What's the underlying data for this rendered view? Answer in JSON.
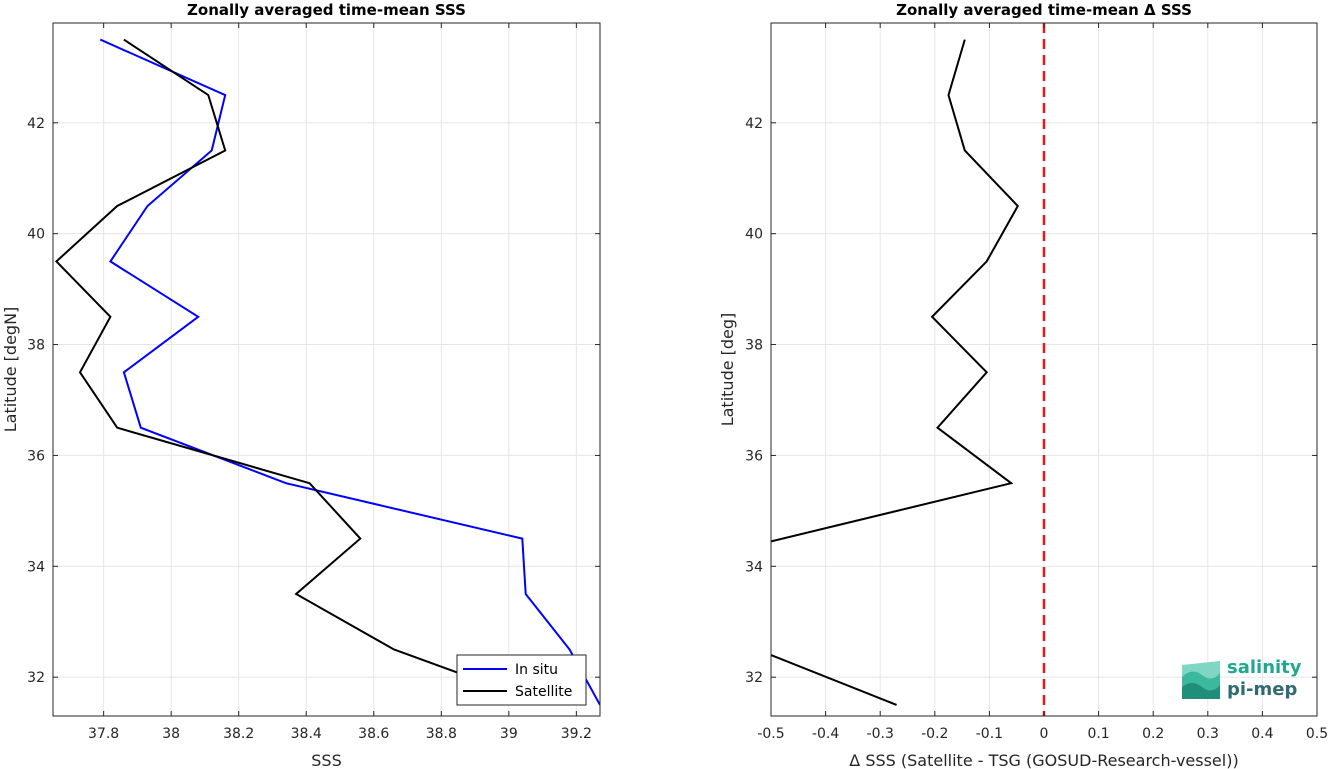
{
  "chart_data": [
    {
      "type": "line",
      "title": "Zonally averaged time-mean SSS",
      "xlabel": "SSS",
      "ylabel": "Latitude [degN]",
      "xlim": [
        37.65,
        39.27
      ],
      "ylim": [
        31.3,
        43.8
      ],
      "xticks": [
        37.8,
        38,
        38.2,
        38.4,
        38.6,
        38.8,
        39,
        39.2
      ],
      "xtick_labels": [
        "37.8",
        "38",
        "38.2",
        "38.4",
        "38.6",
        "38.8",
        "39",
        "39.2"
      ],
      "yticks": [
        32,
        34,
        36,
        38,
        40,
        42
      ],
      "ytick_labels": [
        "32",
        "34",
        "36",
        "38",
        "40",
        "42"
      ],
      "grid": true,
      "legend_position": "bottom-right",
      "series": [
        {
          "name": "In situ",
          "color": "#0000ff",
          "points": [
            [
              37.79,
              43.5
            ],
            [
              38.16,
              42.5
            ],
            [
              38.12,
              41.5
            ],
            [
              37.93,
              40.5
            ],
            [
              37.82,
              39.5
            ],
            [
              38.08,
              38.5
            ],
            [
              37.86,
              37.5
            ],
            [
              37.91,
              36.5
            ],
            [
              38.34,
              35.5
            ],
            [
              39.04,
              34.5
            ],
            [
              39.05,
              33.5
            ],
            [
              39.18,
              32.5
            ],
            [
              39.27,
              31.5
            ]
          ]
        },
        {
          "name": "Satellite",
          "color": "#000000",
          "points": [
            [
              37.86,
              43.5
            ],
            [
              38.11,
              42.5
            ],
            [
              38.16,
              41.5
            ],
            [
              37.84,
              40.5
            ],
            [
              37.66,
              39.5
            ],
            [
              37.82,
              38.5
            ],
            [
              37.73,
              37.5
            ],
            [
              37.84,
              36.5
            ],
            [
              38.41,
              35.5
            ],
            [
              38.56,
              34.5
            ],
            [
              38.37,
              33.5
            ],
            [
              38.66,
              32.5
            ],
            [
              38.93,
              31.9
            ]
          ]
        }
      ]
    },
    {
      "type": "line",
      "title": "Zonally averaged time-mean Δ SSS",
      "xlabel": "Δ SSS (Satellite - TSG (GOSUD-Research-vessel))",
      "ylabel": "Latitude [deg]",
      "xlim": [
        -0.5,
        0.5
      ],
      "ylim": [
        31.3,
        43.8
      ],
      "xticks": [
        -0.5,
        -0.4,
        -0.3,
        -0.2,
        -0.1,
        0,
        0.1,
        0.2,
        0.3,
        0.4,
        0.5
      ],
      "xtick_labels": [
        "-0.5",
        "-0.4",
        "-0.3",
        "-0.2",
        "-0.1",
        "0",
        "0.1",
        "0.2",
        "0.3",
        "0.4",
        "0.5"
      ],
      "yticks": [
        32,
        34,
        36,
        38,
        40,
        42
      ],
      "ytick_labels": [
        "32",
        "34",
        "36",
        "38",
        "40",
        "42"
      ],
      "grid": true,
      "reference_line": {
        "x": 0,
        "color": "#e31a1c",
        "style": "dashed"
      },
      "series": [
        {
          "color": "#000000",
          "segments": [
            [
              [
                -0.145,
                43.5
              ],
              [
                -0.175,
                42.5
              ],
              [
                -0.145,
                41.5
              ],
              [
                -0.048,
                40.5
              ],
              [
                -0.105,
                39.5
              ],
              [
                -0.205,
                38.5
              ],
              [
                -0.105,
                37.5
              ],
              [
                -0.195,
                36.5
              ],
              [
                -0.06,
                35.5
              ],
              [
                -0.5,
                34.45
              ]
            ],
            [
              [
                -0.5,
                32.4
              ],
              [
                -0.27,
                31.5
              ]
            ]
          ]
        }
      ]
    }
  ],
  "logo": {
    "line1": "salinity",
    "line2": "pi-mep"
  }
}
